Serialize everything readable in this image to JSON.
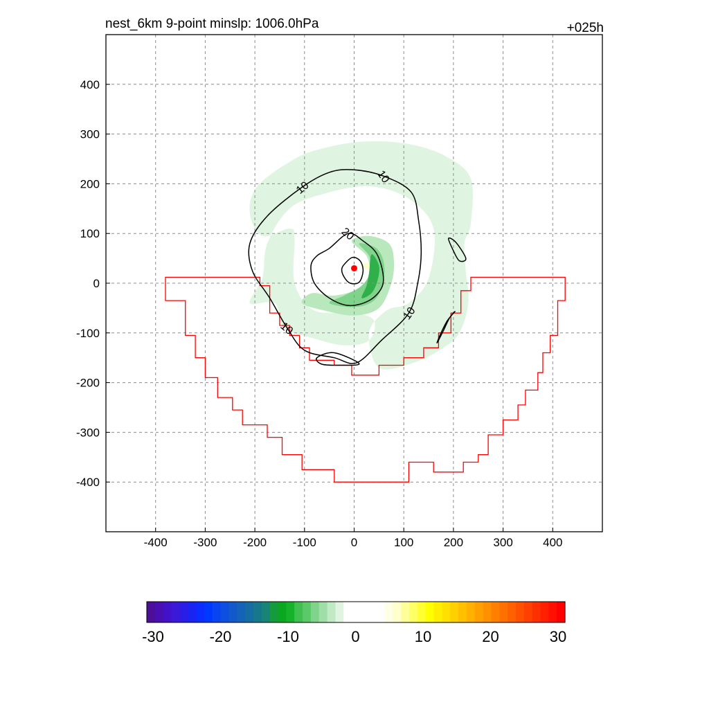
{
  "chart_data": {
    "type": "contour",
    "title_left": "nest_6km  9-point minslp: 1006.0hPa",
    "title_right": "+025h",
    "xlim": [
      -500,
      500
    ],
    "ylim": [
      -500,
      500
    ],
    "x_ticks": [
      -400,
      -300,
      -200,
      -100,
      0,
      100,
      200,
      300,
      400
    ],
    "y_ticks": [
      -400,
      -300,
      -200,
      -100,
      0,
      100,
      200,
      300,
      400
    ],
    "x_tick_labels": [
      "-400",
      "-300",
      "-200",
      "-100",
      "0",
      "100",
      "200",
      "300",
      "400"
    ],
    "y_tick_labels": [
      "-400",
      "-300",
      "-200",
      "-100",
      "0",
      "100",
      "200",
      "300",
      "400"
    ],
    "grid": true,
    "center_marker": {
      "x": 0,
      "y": 30,
      "color": "#ff0000"
    },
    "contour_lines": [
      {
        "level": 10,
        "label": "10",
        "color": "#000000",
        "points": [
          [
            -105,
            193
          ],
          [
            -50,
            223
          ],
          [
            0,
            228
          ],
          [
            60,
            215
          ],
          [
            115,
            183
          ],
          [
            130,
            125
          ],
          [
            135,
            60
          ],
          [
            128,
            0
          ],
          [
            110,
            -60
          ],
          [
            55,
            -115
          ],
          [
            5,
            -160
          ],
          [
            -40,
            -150
          ],
          [
            -100,
            -135
          ],
          [
            -135,
            -90
          ],
          [
            -170,
            -30
          ],
          [
            -205,
            25
          ],
          [
            -210,
            80
          ],
          [
            -175,
            135
          ]
        ]
      },
      {
        "level": 20,
        "label": "20",
        "color": "#000000",
        "points": [
          [
            -50,
            70
          ],
          [
            -12,
            100
          ],
          [
            18,
            85
          ],
          [
            45,
            60
          ],
          [
            58,
            20
          ],
          [
            55,
            -10
          ],
          [
            30,
            -35
          ],
          [
            -10,
            -45
          ],
          [
            -50,
            -30
          ],
          [
            -80,
            0
          ],
          [
            -87,
            35
          ],
          [
            -75,
            55
          ]
        ]
      },
      {
        "level": 30,
        "label": "",
        "color": "#000000",
        "points": [
          [
            -18,
            40
          ],
          [
            -3,
            52
          ],
          [
            12,
            45
          ],
          [
            18,
            25
          ],
          [
            10,
            2
          ],
          [
            -8,
            0
          ],
          [
            -20,
            12
          ],
          [
            -25,
            28
          ]
        ]
      },
      {
        "level": 10,
        "label": "",
        "color": "#000000",
        "points": [
          [
            190,
            90
          ],
          [
            205,
            82
          ],
          [
            225,
            50
          ],
          [
            212,
            45
          ],
          [
            200,
            65
          ]
        ]
      },
      {
        "level": 10,
        "label": "",
        "color": "#000000",
        "points": [
          [
            167,
            -120
          ],
          [
            180,
            -95
          ],
          [
            192,
            -70
          ],
          [
            203,
            -57
          ],
          [
            188,
            -75
          ],
          [
            175,
            -100
          ]
        ]
      },
      {
        "level": 10,
        "label": "",
        "color": "#000000",
        "points": [
          [
            -75,
            -150
          ],
          [
            -40,
            -140
          ],
          [
            10,
            -162
          ],
          [
            -30,
            -165
          ],
          [
            -65,
            -163
          ]
        ]
      }
    ],
    "shaded_regions": [
      {
        "label": "-5",
        "color": "#dff5e1",
        "points": [
          [
            -195,
            195
          ],
          [
            -120,
            250
          ],
          [
            -60,
            272
          ],
          [
            20,
            285
          ],
          [
            110,
            280
          ],
          [
            185,
            255
          ],
          [
            235,
            210
          ],
          [
            235,
            120
          ],
          [
            222,
            80
          ],
          [
            225,
            25
          ],
          [
            230,
            -40
          ],
          [
            212,
            -100
          ],
          [
            180,
            -130
          ],
          [
            120,
            -160
          ],
          [
            50,
            -170
          ],
          [
            30,
            -100
          ],
          [
            65,
            -55
          ],
          [
            110,
            -40
          ],
          [
            150,
            10
          ],
          [
            160,
            110
          ],
          [
            110,
            170
          ],
          [
            30,
            195
          ],
          [
            -60,
            180
          ],
          [
            -130,
            150
          ],
          [
            -175,
            80
          ],
          [
            -185,
            10
          ],
          [
            -210,
            -40
          ],
          [
            -160,
            -40
          ],
          [
            -140,
            -90
          ],
          [
            -85,
            -110
          ],
          [
            -20,
            -125
          ],
          [
            30,
            -115
          ],
          [
            40,
            -75
          ],
          [
            0,
            -60
          ],
          [
            -80,
            -55
          ],
          [
            -120,
            0
          ],
          [
            -120,
            90
          ],
          [
            -130,
            110
          ],
          [
            -185,
            95
          ],
          [
            -210,
            140
          ]
        ]
      },
      {
        "label": "-8",
        "color": "#b9e8bd",
        "points": [
          [
            -5,
            85
          ],
          [
            30,
            95
          ],
          [
            70,
            80
          ],
          [
            80,
            45
          ],
          [
            75,
            0
          ],
          [
            50,
            -50
          ],
          [
            0,
            -65
          ],
          [
            -60,
            -55
          ],
          [
            -105,
            -40
          ],
          [
            -85,
            -20
          ],
          [
            -40,
            -25
          ],
          [
            10,
            -10
          ],
          [
            30,
            20
          ],
          [
            25,
            55
          ]
        ]
      },
      {
        "label": "-10",
        "color": "#7fd38a",
        "points": [
          [
            10,
            80
          ],
          [
            45,
            70
          ],
          [
            60,
            40
          ],
          [
            58,
            0
          ],
          [
            40,
            -35
          ],
          [
            0,
            -48
          ],
          [
            -50,
            -40
          ],
          [
            -20,
            -25
          ],
          [
            15,
            -5
          ],
          [
            35,
            25
          ],
          [
            30,
            55
          ]
        ]
      },
      {
        "label": "-12",
        "color": "#2fb04b",
        "points": [
          [
            35,
            58
          ],
          [
            50,
            35
          ],
          [
            47,
            5
          ],
          [
            35,
            -20
          ],
          [
            15,
            -30
          ],
          [
            25,
            -5
          ],
          [
            30,
            20
          ]
        ]
      },
      {
        "label": "",
        "color": "#ffffcc",
        "points": [
          [
            18,
            38
          ],
          [
            28,
            40
          ],
          [
            30,
            30
          ],
          [
            22,
            28
          ]
        ]
      }
    ],
    "outline": {
      "color": "#ff0000",
      "points": [
        [
          -380,
          12
        ],
        [
          -190,
          12
        ],
        [
          -190,
          -5
        ],
        [
          -170,
          -5
        ],
        [
          -170,
          -60
        ],
        [
          -150,
          -60
        ],
        [
          -150,
          -85
        ],
        [
          -130,
          -85
        ],
        [
          -130,
          -105
        ],
        [
          -110,
          -105
        ],
        [
          -110,
          -130
        ],
        [
          -90,
          -130
        ],
        [
          -90,
          -155
        ],
        [
          -40,
          -155
        ],
        [
          -40,
          -165
        ],
        [
          -5,
          -165
        ],
        [
          -5,
          -185
        ],
        [
          50,
          -185
        ],
        [
          50,
          -165
        ],
        [
          100,
          -165
        ],
        [
          100,
          -150
        ],
        [
          140,
          -150
        ],
        [
          140,
          -130
        ],
        [
          170,
          -130
        ],
        [
          170,
          -100
        ],
        [
          195,
          -100
        ],
        [
          195,
          -60
        ],
        [
          215,
          -60
        ],
        [
          215,
          -15
        ],
        [
          235,
          -15
        ],
        [
          235,
          12
        ],
        [
          425,
          12
        ],
        [
          425,
          -35
        ],
        [
          410,
          -35
        ],
        [
          410,
          -105
        ],
        [
          395,
          -105
        ],
        [
          395,
          -140
        ],
        [
          380,
          -140
        ],
        [
          380,
          -180
        ],
        [
          370,
          -180
        ],
        [
          370,
          -215
        ],
        [
          345,
          -215
        ],
        [
          345,
          -245
        ],
        [
          330,
          -245
        ],
        [
          330,
          -275
        ],
        [
          300,
          -275
        ],
        [
          300,
          -305
        ],
        [
          270,
          -305
        ],
        [
          270,
          -345
        ],
        [
          250,
          -345
        ],
        [
          250,
          -360
        ],
        [
          220,
          -360
        ],
        [
          220,
          -380
        ],
        [
          160,
          -380
        ],
        [
          160,
          -360
        ],
        [
          110,
          -360
        ],
        [
          110,
          -400
        ],
        [
          -40,
          -400
        ],
        [
          -40,
          -375
        ],
        [
          -105,
          -375
        ],
        [
          -105,
          -345
        ],
        [
          -145,
          -345
        ],
        [
          -145,
          -310
        ],
        [
          -175,
          -310
        ],
        [
          -175,
          -285
        ],
        [
          -225,
          -285
        ],
        [
          -225,
          -255
        ],
        [
          -245,
          -255
        ],
        [
          -245,
          -230
        ],
        [
          -275,
          -230
        ],
        [
          -275,
          -190
        ],
        [
          -300,
          -190
        ],
        [
          -300,
          -150
        ],
        [
          -320,
          -150
        ],
        [
          -320,
          -105
        ],
        [
          -340,
          -105
        ],
        [
          -340,
          -35
        ],
        [
          -380,
          -35
        ]
      ]
    },
    "colorbar": {
      "tick_labels": [
        "-30",
        "-20",
        "-10",
        "0",
        "10",
        "20",
        "30"
      ],
      "colors": [
        "#4b0f9a",
        "#4a0fb0",
        "#4212c8",
        "#3a1ad8",
        "#2a1ee6",
        "#1a24f2",
        "#0a2cff",
        "#0038ff",
        "#0a44f0",
        "#0d4fe0",
        "#1359cc",
        "#1563b8",
        "#166da4",
        "#17778d",
        "#188377",
        "#159a3e",
        "#0aa81e",
        "#14b32a",
        "#3fbf4e",
        "#5cc969",
        "#7fd38a",
        "#9fdea6",
        "#c0eac3",
        "#dff5e1",
        "#ffffff",
        "#ffffff",
        "#ffffff",
        "#ffffff",
        "#ffffff",
        "#ffffe6",
        "#ffffcc",
        "#ffff99",
        "#ffff66",
        "#ffff33",
        "#ffff00",
        "#ffee00",
        "#ffe000",
        "#ffd000",
        "#ffc000",
        "#ffb000",
        "#ffa000",
        "#ff9000",
        "#ff8000",
        "#ff7000",
        "#ff6000",
        "#ff5000",
        "#ff4000",
        "#ff3000",
        "#ff2000",
        "#ff1000",
        "#ff0000"
      ]
    }
  }
}
